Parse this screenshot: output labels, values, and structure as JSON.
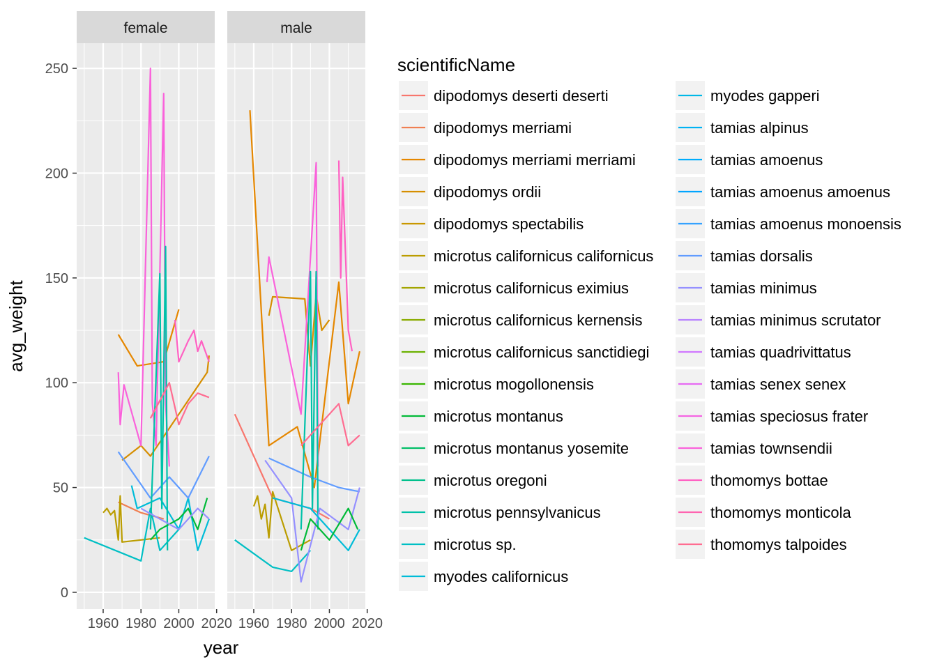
{
  "chart_data": {
    "type": "line",
    "facet_variable": "sex",
    "facets": [
      "female",
      "male"
    ],
    "xlabel": "year",
    "ylabel": "avg_weight",
    "xlim": [
      1946,
      2019
    ],
    "ylim": [
      -8,
      262
    ],
    "x_ticks": [
      1960,
      1980,
      2000,
      2020
    ],
    "y_ticks": [
      0,
      50,
      100,
      150,
      200,
      250
    ],
    "grid": true,
    "legend": {
      "title": "scientificName",
      "placement": "right",
      "columns": 2,
      "entries": [
        {
          "name": "dipodomys deserti deserti",
          "color": "#F8766D"
        },
        {
          "name": "dipodomys merriami",
          "color": "#F07F52"
        },
        {
          "name": "dipodomys merriami merriami",
          "color": "#E58700"
        },
        {
          "name": "dipodomys ordii",
          "color": "#D68E00"
        },
        {
          "name": "dipodomys spectabilis",
          "color": "#C99800"
        },
        {
          "name": "microtus californicus californicus",
          "color": "#BB9D00"
        },
        {
          "name": "microtus californicus eximius",
          "color": "#A3A500"
        },
        {
          "name": "microtus californicus kernensis",
          "color": "#8AAB00"
        },
        {
          "name": "microtus californicus sanctidiegi",
          "color": "#6BB100"
        },
        {
          "name": "microtus mogollonensis",
          "color": "#39B600"
        },
        {
          "name": "microtus montanus",
          "color": "#00BA38"
        },
        {
          "name": "microtus montanus yosemite",
          "color": "#00BE67"
        },
        {
          "name": "microtus oregoni",
          "color": "#00C08B"
        },
        {
          "name": "microtus pennsylvanicus",
          "color": "#00C1A9"
        },
        {
          "name": "microtus sp.",
          "color": "#00BFC4"
        },
        {
          "name": "myodes californicus",
          "color": "#00BCD8"
        },
        {
          "name": "myodes gapperi",
          "color": "#00B8E7"
        },
        {
          "name": "tamias alpinus",
          "color": "#00B2F3"
        },
        {
          "name": "tamias amoenus",
          "color": "#00ACFC"
        },
        {
          "name": "tamias amoenus amoenus",
          "color": "#00A5FF"
        },
        {
          "name": "tamias amoenus monoensis",
          "color": "#35A2FF"
        },
        {
          "name": "tamias dorsalis",
          "color": "#619CFF"
        },
        {
          "name": "tamias minimus",
          "color": "#9590FF"
        },
        {
          "name": "tamias minimus scrutator",
          "color": "#B983FF"
        },
        {
          "name": "tamias quadrivittatus",
          "color": "#D078FF"
        },
        {
          "name": "tamias senex senex",
          "color": "#E76BF3"
        },
        {
          "name": "tamias speciosus frater",
          "color": "#F564E3"
        },
        {
          "name": "tamias townsendii",
          "color": "#FA62DB"
        },
        {
          "name": "thomomys bottae",
          "color": "#FF61C3"
        },
        {
          "name": "thomomys monticola",
          "color": "#FF64B0"
        },
        {
          "name": "thomomys talpoides",
          "color": "#FF6C91"
        }
      ]
    },
    "series": [
      {
        "name": "dipodomys merriami merriami",
        "facet": "female",
        "color": "#E58700",
        "x": [
          1968,
          1978,
          1992,
          2000
        ],
        "y": [
          123,
          108,
          110,
          135
        ]
      },
      {
        "name": "dipodomys merriami",
        "facet": "female",
        "color": "#F07F52",
        "x": [
          1968,
          1980,
          1992
        ],
        "y": [
          43,
          38,
          35
        ]
      },
      {
        "name": "dipodomys ordii",
        "facet": "female",
        "color": "#D68E00",
        "x": [
          1970,
          1980,
          1985,
          2015,
          2016
        ],
        "y": [
          63,
          70,
          65,
          105,
          113
        ]
      },
      {
        "name": "microtus californicus californicus",
        "facet": "female",
        "color": "#BB9D00",
        "x": [
          1960,
          1962,
          1964,
          1966,
          1968,
          1969,
          1970,
          1980,
          1990
        ],
        "y": [
          38,
          40,
          37,
          39,
          25,
          46,
          24,
          25,
          26
        ]
      },
      {
        "name": "microtus sp.",
        "facet": "female",
        "color": "#00BFC4",
        "x": [
          1950,
          1980,
          1985,
          1990,
          2000
        ],
        "y": [
          26,
          15,
          40,
          20,
          30
        ]
      },
      {
        "name": "myodes californicus",
        "facet": "female",
        "color": "#00BCD8",
        "x": [
          1975,
          1978,
          1990,
          2000,
          2005,
          2010,
          2016
        ],
        "y": [
          51,
          40,
          45,
          30,
          45,
          20,
          35
        ]
      },
      {
        "name": "tamias dorsalis",
        "facet": "female",
        "color": "#619CFF",
        "x": [
          1968,
          1985,
          1995,
          2005,
          2016
        ],
        "y": [
          67,
          45,
          55,
          45,
          65
        ]
      },
      {
        "name": "tamias townsendii",
        "facet": "female",
        "color": "#FA62DB",
        "x": [
          1968,
          1969,
          1971,
          1980,
          1985,
          1986,
          1988,
          1992,
          1993,
          1995
        ],
        "y": [
          105,
          80,
          99,
          70,
          250,
          90,
          70,
          238,
          90,
          60
        ]
      },
      {
        "name": "microtus pennsylvanicus",
        "facet": "female",
        "color": "#00C1A9",
        "x": [
          1985,
          1990,
          1991,
          1993,
          1994
        ],
        "y": [
          30,
          152,
          40,
          165,
          20
        ]
      },
      {
        "name": "thomomys talpoides",
        "facet": "female",
        "color": "#FF6C91",
        "x": [
          1985,
          1995,
          2000,
          2005,
          2010,
          2016
        ],
        "y": [
          83,
          100,
          80,
          90,
          95,
          93
        ]
      },
      {
        "name": "thomomys bottae",
        "facet": "female",
        "color": "#FF61C3",
        "x": [
          1998,
          2000,
          2005,
          2008,
          2010,
          2012,
          2016
        ],
        "y": [
          130,
          110,
          120,
          125,
          115,
          120,
          110
        ]
      },
      {
        "name": "microtus montanus",
        "facet": "female",
        "color": "#00BA38",
        "x": [
          1985,
          1990,
          2000,
          2005,
          2010,
          2015
        ],
        "y": [
          25,
          30,
          35,
          40,
          30,
          45
        ]
      },
      {
        "name": "tamias minimus",
        "facet": "female",
        "color": "#9590FF",
        "x": [
          1980,
          1990,
          2000,
          2010,
          2016
        ],
        "y": [
          40,
          35,
          30,
          40,
          35
        ]
      },
      {
        "name": "dipodomys merriami merriami",
        "facet": "male",
        "color": "#E58700",
        "x": [
          1958,
          1968,
          1983,
          1992,
          2005,
          2010,
          2016
        ],
        "y": [
          230,
          70,
          79,
          50,
          148,
          90,
          115
        ]
      },
      {
        "name": "dipodomys deserti deserti",
        "facet": "male",
        "color": "#F8766D",
        "x": [
          1950,
          1970,
          1990,
          2000
        ],
        "y": [
          85,
          45,
          40,
          35
        ]
      },
      {
        "name": "dipodomys ordii",
        "facet": "male",
        "color": "#D68E00",
        "x": [
          1968,
          1970,
          1987,
          1990,
          1993,
          1996,
          2000
        ],
        "y": [
          132,
          141,
          140,
          108,
          142,
          125,
          130
        ]
      },
      {
        "name": "microtus californicus californicus",
        "facet": "male",
        "color": "#BB9D00",
        "x": [
          1960,
          1962,
          1964,
          1966,
          1968,
          1970,
          1980,
          1990
        ],
        "y": [
          41,
          46,
          35,
          42,
          26,
          48,
          20,
          25
        ]
      },
      {
        "name": "microtus sp.",
        "facet": "male",
        "color": "#00BFC4",
        "x": [
          1950,
          1970,
          1980,
          1990
        ],
        "y": [
          25,
          12,
          10,
          20
        ]
      },
      {
        "name": "tamias dorsalis",
        "facet": "male",
        "color": "#619CFF",
        "x": [
          1968,
          1990,
          2005,
          2016
        ],
        "y": [
          64,
          55,
          50,
          48
        ]
      },
      {
        "name": "tamias townsendii",
        "facet": "male",
        "color": "#FA62DB",
        "x": [
          1967,
          1968,
          1985,
          1993,
          1994
        ],
        "y": [
          148,
          160,
          85,
          205,
          60
        ]
      },
      {
        "name": "microtus pennsylvanicus",
        "facet": "male",
        "color": "#00C1A9",
        "x": [
          1985,
          1990,
          1991,
          1993,
          1994
        ],
        "y": [
          30,
          153,
          40,
          153,
          30
        ]
      },
      {
        "name": "thomomys bottae",
        "facet": "male",
        "color": "#FF61C3",
        "x": [
          2005,
          2006,
          2007,
          2010,
          2012
        ],
        "y": [
          206,
          150,
          198,
          125,
          115
        ]
      },
      {
        "name": "thomomys talpoides",
        "facet": "male",
        "color": "#FF6C91",
        "x": [
          1985,
          1995,
          2005,
          2010,
          2016
        ],
        "y": [
          70,
          80,
          90,
          70,
          75
        ]
      },
      {
        "name": "tamias minimus",
        "facet": "male",
        "color": "#9590FF",
        "x": [
          1966,
          1980,
          1985,
          1995,
          2010,
          2016
        ],
        "y": [
          63,
          45,
          5,
          40,
          30,
          50
        ]
      },
      {
        "name": "myodes californicus",
        "facet": "male",
        "color": "#00BCD8",
        "x": [
          1970,
          1990,
          2000,
          2010,
          2016
        ],
        "y": [
          45,
          40,
          30,
          20,
          30
        ]
      },
      {
        "name": "microtus montanus",
        "facet": "male",
        "color": "#00BA38",
        "x": [
          1985,
          1990,
          2000,
          2010,
          2015
        ],
        "y": [
          20,
          35,
          25,
          40,
          30
        ]
      }
    ]
  }
}
